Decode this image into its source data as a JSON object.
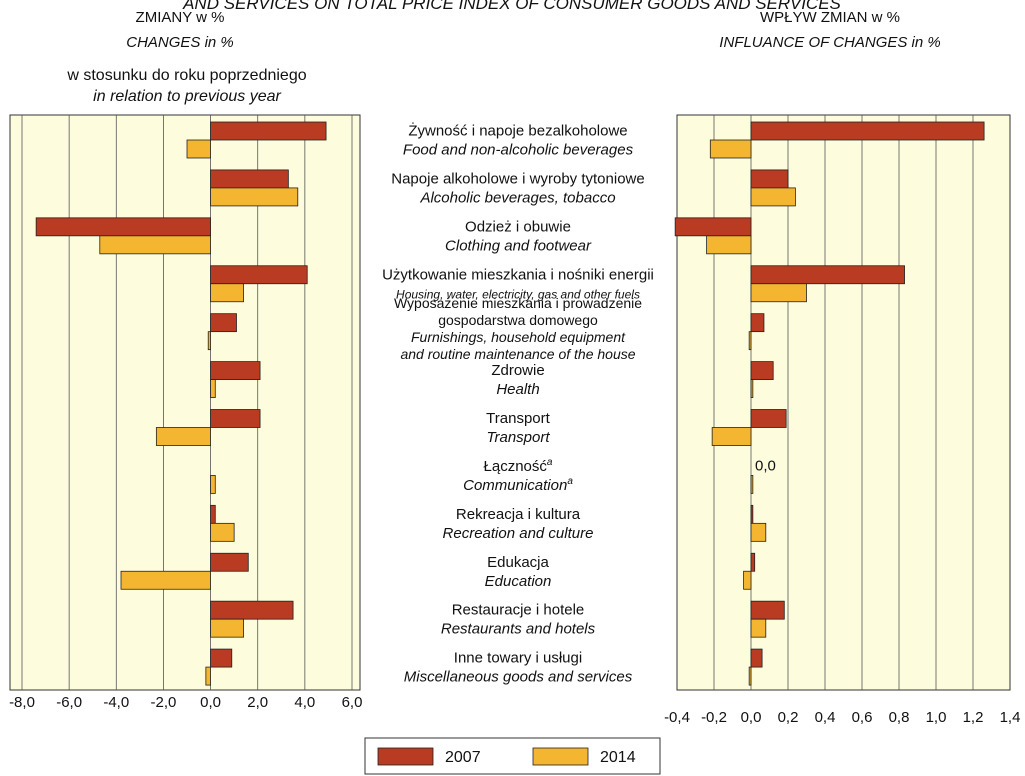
{
  "title": "AND SERVICES ON TOTAL PRICE INDEX OF CONSUMER GOODS AND SERVICES",
  "chart_data": [
    {
      "type": "bar",
      "orientation": "horizontal",
      "header": [
        "ZMIANY w %",
        "CHANGES in %"
      ],
      "subheader": [
        "w stosunku do roku poprzedniego",
        "in relation to previous year"
      ],
      "categories": [
        {
          "label": [
            "Żywność i napoje bezalkoholowe"
          ],
          "label_en": [
            "Food and non-alcoholic beverages"
          ]
        },
        {
          "label": [
            "Napoje alkoholowe i wyroby tytoniowe"
          ],
          "label_en": [
            "Alcoholic beverages, tobacco"
          ]
        },
        {
          "label": [
            "Odzież i obuwie"
          ],
          "label_en": [
            "Clothing and footwear"
          ]
        },
        {
          "label": [
            "Użytkowanie mieszkania i nośniki energii"
          ],
          "label_en": [
            "Housing, water, electricity, gas and other fuels"
          ]
        },
        {
          "label": [
            "Wyposażenie mieszkania i prowadzenie",
            "gospodarstwa domowego"
          ],
          "label_en": [
            "Furnishings, household equipment",
            "and routine maintenance of the house"
          ]
        },
        {
          "label": [
            "Zdrowie"
          ],
          "label_en": [
            "Health"
          ]
        },
        {
          "label": [
            "Transport"
          ],
          "label_en": [
            "Transport"
          ]
        },
        {
          "label": [
            "Łączność"
          ],
          "label_en": [
            "Communication"
          ],
          "marker": "a"
        },
        {
          "label": [
            "Rekreacja i kultura"
          ],
          "label_en": [
            "Recreation and culture"
          ]
        },
        {
          "label": [
            "Edukacja"
          ],
          "label_en": [
            "Education"
          ]
        },
        {
          "label": [
            "Restauracje i hotele"
          ],
          "label_en": [
            "Restaurants and hotels"
          ]
        },
        {
          "label": [
            "Inne towary i usługi"
          ],
          "label_en": [
            "Miscellaneous goods and services"
          ]
        }
      ],
      "series": [
        {
          "name": "2007",
          "color": "#b83b22",
          "values": [
            4.9,
            3.3,
            -7.4,
            4.1,
            1.1,
            2.1,
            2.1,
            0,
            0.2,
            1.6,
            3.5,
            0.9
          ]
        },
        {
          "name": "2014",
          "color": "#f4b631",
          "values": [
            -1.0,
            3.7,
            -4.7,
            1.4,
            -0.1,
            0.2,
            -2.3,
            0.2,
            1.0,
            -3.8,
            1.4,
            -0.2
          ]
        }
      ],
      "xlim": [
        -8,
        6
      ],
      "xticks": [
        {
          "value": -8,
          "label": "-8,0"
        },
        {
          "value": -6,
          "label": "-6,0"
        },
        {
          "value": -4,
          "label": "-4,0"
        },
        {
          "value": -2,
          "label": "-2,0"
        },
        {
          "value": 0,
          "label": "0,0"
        },
        {
          "value": 2,
          "label": "2,0"
        },
        {
          "value": 4,
          "label": "4,0"
        },
        {
          "value": 6,
          "label": "6,0"
        }
      ],
      "grid": true
    },
    {
      "type": "bar",
      "orientation": "horizontal",
      "header": [
        "WPŁYW ZMIAN w %",
        "INFLUANCE OF CHANGES in %"
      ],
      "series": [
        {
          "name": "2007",
          "color": "#b83b22",
          "values": [
            1.26,
            0.2,
            -0.41,
            0.83,
            0.07,
            0.12,
            0.19,
            0.0,
            0.01,
            0.02,
            0.18,
            0.06
          ],
          "value_labels": [
            null,
            null,
            null,
            null,
            null,
            null,
            null,
            "0,0",
            null,
            null,
            null,
            null
          ]
        },
        {
          "name": "2014",
          "color": "#f4b631",
          "values": [
            -0.22,
            0.24,
            -0.24,
            0.3,
            -0.01,
            0.01,
            -0.21,
            0.01,
            0.08,
            -0.04,
            0.08,
            -0.01
          ]
        }
      ],
      "xlim": [
        -0.4,
        1.4
      ],
      "xticks": [
        {
          "value": -0.4,
          "label": "-0,4"
        },
        {
          "value": -0.2,
          "label": "-0,2"
        },
        {
          "value": 0,
          "label": "0,0"
        },
        {
          "value": 0.2,
          "label": "0,2"
        },
        {
          "value": 0.4,
          "label": "0,4"
        },
        {
          "value": 0.6,
          "label": "0,6"
        },
        {
          "value": 0.8,
          "label": "0,8"
        },
        {
          "value": 1.0,
          "label": "1,0"
        },
        {
          "value": 1.2,
          "label": "1,2"
        },
        {
          "value": 1.4,
          "label": "1,4"
        }
      ],
      "grid": true
    }
  ]
}
